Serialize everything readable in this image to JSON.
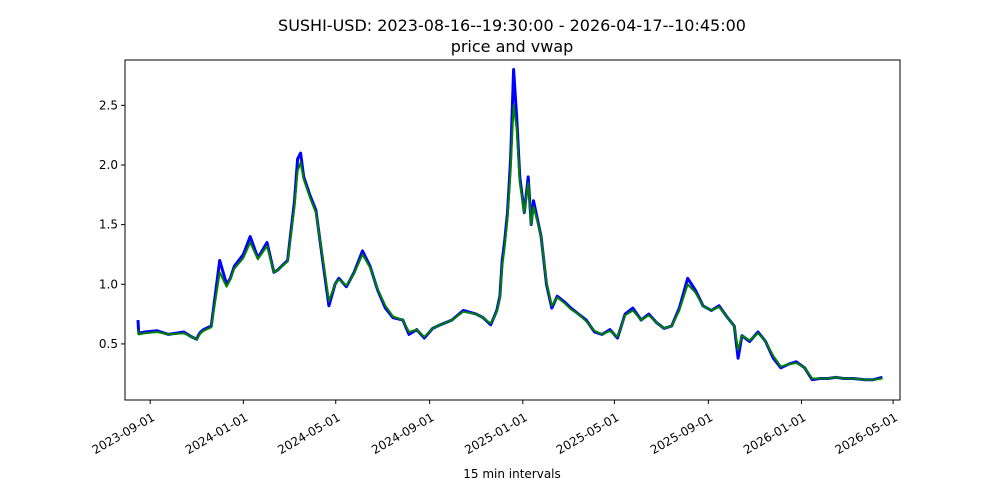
{
  "chart_data": {
    "type": "line",
    "title": "SUSHI-USD: 2023-08-16--19:30:00 - 2026-04-17--10:45:00",
    "subtitle": "price and vwap",
    "xlabel": "15 min intervals",
    "ylabel": "",
    "xlim": [
      "2023-07-30",
      "2026-05-10"
    ],
    "ylim": [
      0.03,
      2.88
    ],
    "xticks": [
      "2023-09-01",
      "2024-01-01",
      "2024-05-01",
      "2024-09-01",
      "2025-01-01",
      "2025-05-01",
      "2025-09-01",
      "2026-01-01",
      "2026-05-01"
    ],
    "yticks": [
      0.5,
      1.0,
      1.5,
      2.0,
      2.5
    ],
    "ytick_labels": [
      "0.5",
      "1.0",
      "1.5",
      "2.0",
      "2.5"
    ],
    "grid": false,
    "legend": "none",
    "colors": {
      "price": "#0000ff",
      "vwap": "#008000"
    },
    "x": [
      "2023-08-16",
      "2023-08-17",
      "2023-08-25",
      "2023-09-10",
      "2023-09-25",
      "2023-10-15",
      "2023-10-25",
      "2023-11-01",
      "2023-11-03",
      "2023-11-06",
      "2023-11-10",
      "2023-11-20",
      "2023-12-01",
      "2023-12-10",
      "2023-12-15",
      "2023-12-20",
      "2024-01-01",
      "2024-01-10",
      "2024-01-20",
      "2024-02-01",
      "2024-02-10",
      "2024-02-15",
      "2024-02-28",
      "2024-03-08",
      "2024-03-12",
      "2024-03-16",
      "2024-03-20",
      "2024-03-28",
      "2024-04-05",
      "2024-04-15",
      "2024-04-22",
      "2024-04-30",
      "2024-05-05",
      "2024-05-15",
      "2024-05-25",
      "2024-06-05",
      "2024-06-15",
      "2024-06-25",
      "2024-07-05",
      "2024-07-15",
      "2024-07-28",
      "2024-08-05",
      "2024-08-15",
      "2024-08-25",
      "2024-09-05",
      "2024-09-15",
      "2024-09-30",
      "2024-10-15",
      "2024-11-01",
      "2024-11-10",
      "2024-11-20",
      "2024-11-28",
      "2024-12-02",
      "2024-12-05",
      "2024-12-08",
      "2024-12-12",
      "2024-12-16",
      "2024-12-20",
      "2024-12-24",
      "2024-12-28",
      "2025-01-03",
      "2025-01-08",
      "2025-01-12",
      "2025-01-15",
      "2025-01-20",
      "2025-01-25",
      "2025-02-01",
      "2025-02-08",
      "2025-02-15",
      "2025-02-25",
      "2025-03-05",
      "2025-03-15",
      "2025-03-25",
      "2025-04-05",
      "2025-04-15",
      "2025-04-25",
      "2025-05-05",
      "2025-05-15",
      "2025-05-25",
      "2025-06-05",
      "2025-06-15",
      "2025-06-25",
      "2025-07-05",
      "2025-07-15",
      "2025-07-25",
      "2025-08-05",
      "2025-08-15",
      "2025-08-25",
      "2025-09-05",
      "2025-09-15",
      "2025-09-25",
      "2025-10-05",
      "2025-10-10",
      "2025-10-15",
      "2025-10-25",
      "2025-11-05",
      "2025-11-15",
      "2025-11-25",
      "2025-12-05",
      "2025-12-15",
      "2025-12-25",
      "2026-01-05",
      "2026-01-15",
      "2026-01-25",
      "2026-02-05",
      "2026-02-15",
      "2026-02-25",
      "2026-03-10",
      "2026-03-25",
      "2026-04-05",
      "2026-04-17"
    ],
    "series": [
      {
        "values": [
          0.7,
          0.59,
          0.6,
          0.61,
          0.58,
          0.6,
          0.56,
          0.54,
          0.57,
          0.6,
          0.62,
          0.65,
          1.2,
          1.0,
          1.05,
          1.15,
          1.25,
          1.4,
          1.22,
          1.35,
          1.1,
          1.12,
          1.2,
          1.7,
          2.05,
          2.1,
          1.9,
          1.75,
          1.62,
          1.15,
          0.82,
          1.0,
          1.05,
          0.98,
          1.1,
          1.28,
          1.15,
          0.95,
          0.8,
          0.72,
          0.7,
          0.58,
          0.62,
          0.55,
          0.63,
          0.66,
          0.7,
          0.78,
          0.75,
          0.72,
          0.66,
          0.78,
          0.9,
          1.2,
          1.35,
          1.6,
          2.05,
          2.8,
          2.4,
          1.9,
          1.6,
          1.9,
          1.5,
          1.7,
          1.55,
          1.4,
          1.0,
          0.8,
          0.9,
          0.85,
          0.8,
          0.75,
          0.7,
          0.6,
          0.58,
          0.62,
          0.55,
          0.75,
          0.8,
          0.7,
          0.75,
          0.68,
          0.63,
          0.65,
          0.8,
          1.05,
          0.95,
          0.82,
          0.78,
          0.82,
          0.73,
          0.65,
          0.38,
          0.57,
          0.52,
          0.6,
          0.52,
          0.38,
          0.3,
          0.33,
          0.35,
          0.3,
          0.2,
          0.21,
          0.21,
          0.22,
          0.21,
          0.21,
          0.2,
          0.2,
          0.22
        ],
        "values_vwap": [
          0.62,
          0.58,
          0.59,
          0.6,
          0.58,
          0.59,
          0.56,
          0.54,
          0.56,
          0.59,
          0.61,
          0.64,
          1.1,
          0.98,
          1.04,
          1.13,
          1.22,
          1.35,
          1.21,
          1.32,
          1.1,
          1.12,
          1.19,
          1.65,
          1.95,
          2.02,
          1.88,
          1.73,
          1.6,
          1.18,
          0.86,
          1.0,
          1.04,
          0.99,
          1.09,
          1.25,
          1.14,
          0.96,
          0.82,
          0.73,
          0.7,
          0.6,
          0.62,
          0.56,
          0.63,
          0.66,
          0.7,
          0.77,
          0.75,
          0.72,
          0.67,
          0.77,
          0.88,
          1.15,
          1.3,
          1.55,
          1.95,
          2.5,
          2.3,
          1.85,
          1.6,
          1.85,
          1.5,
          1.65,
          1.53,
          1.4,
          1.02,
          0.82,
          0.89,
          0.84,
          0.79,
          0.75,
          0.69,
          0.61,
          0.58,
          0.61,
          0.56,
          0.74,
          0.78,
          0.7,
          0.74,
          0.68,
          0.63,
          0.65,
          0.78,
          1.0,
          0.93,
          0.82,
          0.78,
          0.81,
          0.73,
          0.65,
          0.45,
          0.57,
          0.53,
          0.59,
          0.52,
          0.4,
          0.31,
          0.33,
          0.34,
          0.3,
          0.21,
          0.21,
          0.21,
          0.22,
          0.21,
          0.21,
          0.2,
          0.2,
          0.21
        ]
      }
    ]
  }
}
